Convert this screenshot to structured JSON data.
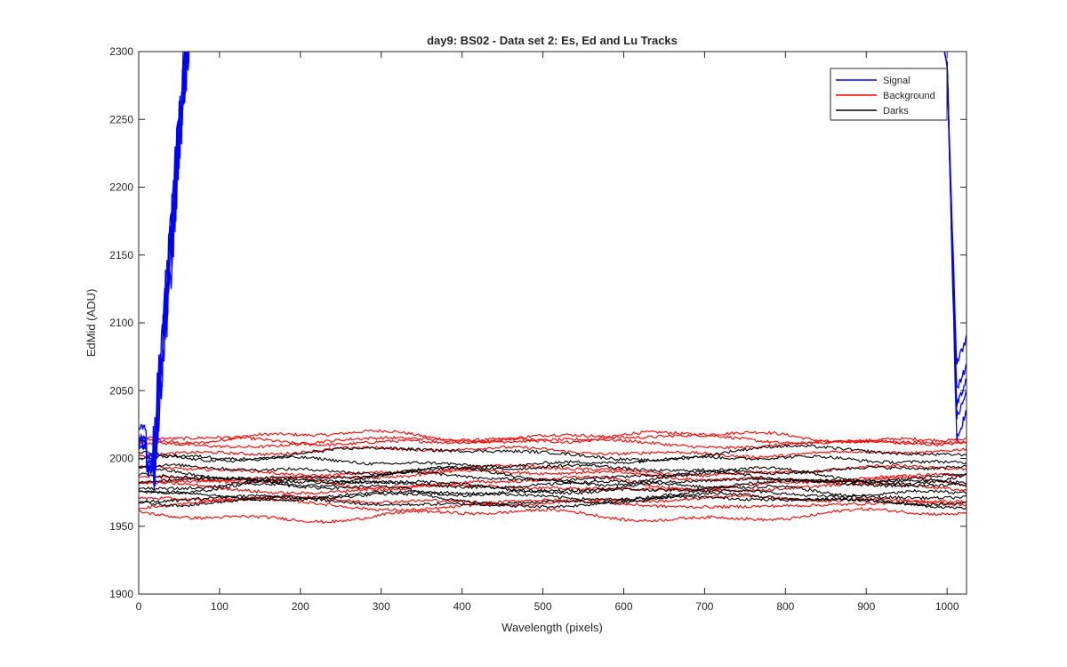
{
  "chart_data": {
    "type": "line",
    "title": "day9: BS02 - Data set 2: Es, Ed and Lu Tracks",
    "xlabel": "Wavelength (pixels)",
    "ylabel": "EdMid (ADU)",
    "xlim": [
      0,
      1024
    ],
    "ylim": [
      1900,
      2300
    ],
    "xticks": [
      0,
      100,
      200,
      300,
      400,
      500,
      600,
      700,
      800,
      900,
      1000
    ],
    "yticks": [
      1900,
      1950,
      2000,
      2050,
      2100,
      2150,
      2200,
      2250,
      2300
    ],
    "grid": false,
    "legend": {
      "placement": "top-right",
      "entries": [
        {
          "name": "Signal",
          "color": "#0000ff"
        },
        {
          "name": "Background",
          "color": "#ff0000"
        },
        {
          "name": "Darks",
          "color": "#000000"
        }
      ]
    },
    "colors": {
      "axes": "#262626",
      "signal": "#0000ff",
      "background": "#ff0000",
      "darks": "#000000"
    },
    "series": [
      {
        "name": "Signal",
        "values": [
          {
            "group": "Signal",
            "base": 2012,
            "low": 1990,
            "rise_end": 2300,
            "recover": 2300,
            "end": 2085
          },
          {
            "group": "Signal",
            "base": 2010,
            "low": 1995,
            "rise_end": 2300,
            "recover": 2300,
            "end": 2065
          },
          {
            "group": "Signal",
            "base": 2015,
            "low": 1992,
            "rise_end": 2280,
            "recover": 2300,
            "end": 2055
          },
          {
            "group": "Signal",
            "base": 2008,
            "low": 1998,
            "rise_end": 2270,
            "recover": 2300,
            "end": 2045
          },
          {
            "group": "Signal",
            "base": 2022,
            "low": 2000,
            "rise_end": 2250,
            "recover": 2300,
            "end": 2030
          }
        ]
      },
      {
        "name": "Background",
        "values": [
          2016,
          2014,
          2012,
          2005,
          1991,
          1987,
          1982,
          1978,
          1969,
          1966,
          1958
        ]
      },
      {
        "name": "Darks",
        "values": [
          2004,
          1998,
          1992,
          1988,
          1985,
          1982,
          1980,
          1977,
          1973,
          1970,
          1968
        ]
      }
    ]
  }
}
